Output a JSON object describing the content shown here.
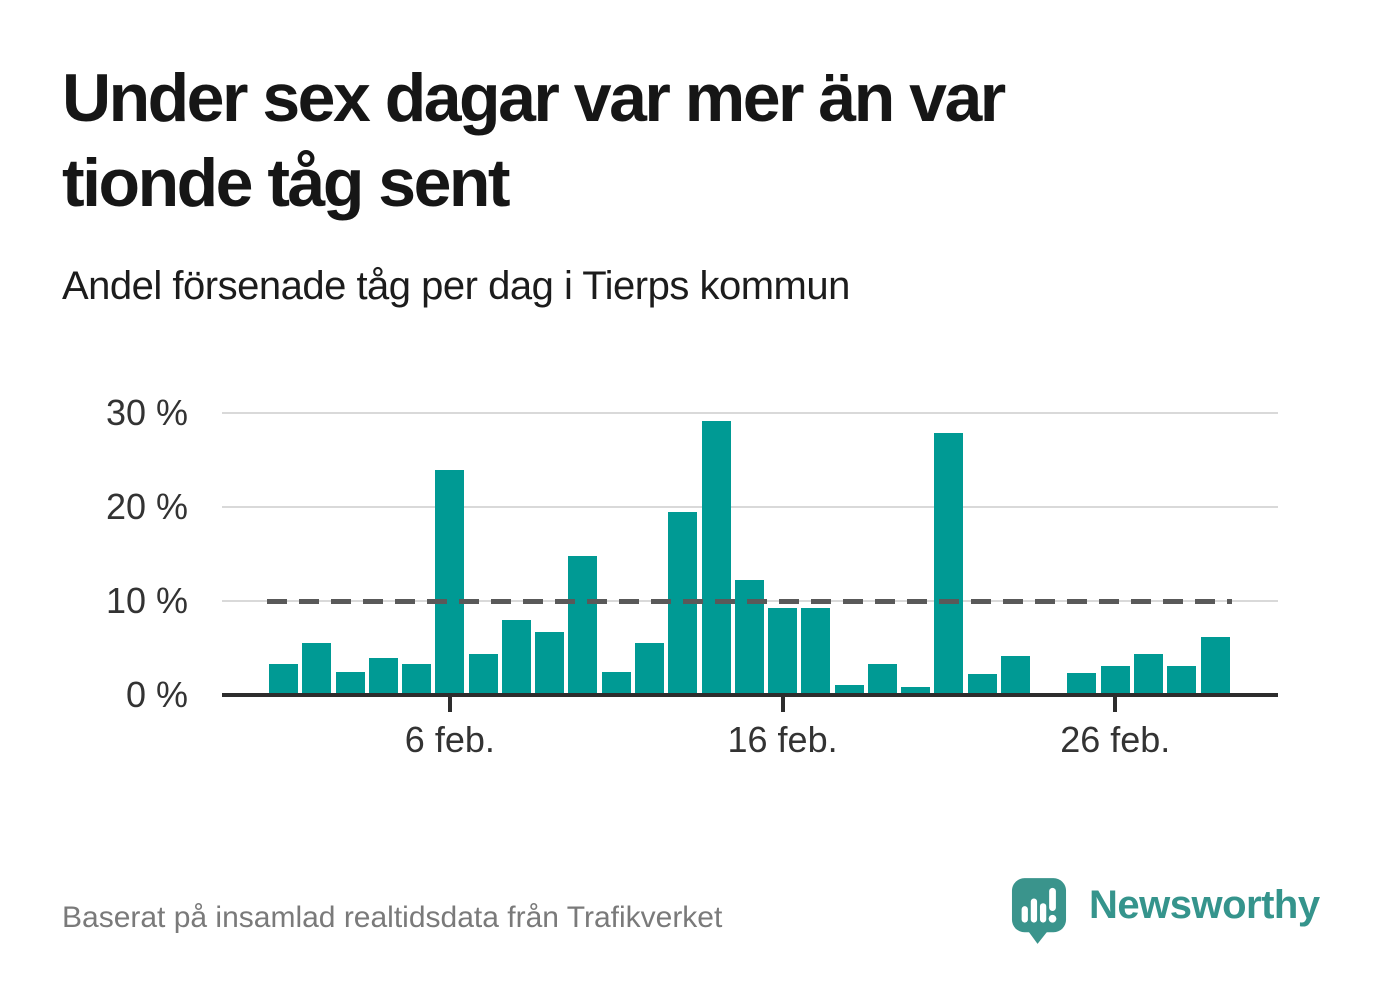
{
  "page": {
    "background": "#ffffff"
  },
  "header": {
    "title": "Under sex dagar var mer än var tionde tåg sent",
    "title_lines": [
      "Under sex dagar var mer än var",
      "tionde tåg sent"
    ],
    "subtitle": "Andel försenade tåg per dag i Tierps kommun"
  },
  "chart_data": {
    "type": "bar",
    "title": "Under sex dagar var mer än var tionde tåg sent",
    "subtitle": "Andel försenade tåg per dag i Tierps kommun",
    "unit": "%",
    "categories": [
      "1 feb.",
      "2 feb.",
      "3 feb.",
      "4 feb.",
      "5 feb.",
      "6 feb.",
      "7 feb.",
      "8 feb.",
      "9 feb.",
      "10 feb.",
      "11 feb.",
      "12 feb.",
      "13 feb.",
      "14 feb.",
      "15 feb.",
      "16 feb.",
      "17 feb.",
      "18 feb.",
      "19 feb.",
      "20 feb.",
      "21 feb.",
      "22 feb.",
      "23 feb.",
      "24 feb.",
      "25 feb.",
      "26 feb.",
      "27 feb.",
      "28 feb.",
      "29 feb."
    ],
    "values": [
      3.3,
      5.5,
      2.4,
      3.9,
      3.3,
      23.9,
      4.4,
      8.0,
      6.7,
      14.8,
      2.5,
      5.5,
      19.5,
      29.2,
      12.2,
      9.3,
      9.3,
      1.1,
      3.3,
      0.9,
      27.9,
      2.2,
      4.2,
      null,
      2.3,
      3.1,
      4.4,
      3.1,
      6.2
    ],
    "missing_categories": [
      "24 feb."
    ],
    "ylim": [
      0,
      30
    ],
    "yticks": [
      {
        "label": "30 %",
        "value": 30
      },
      {
        "label": "20 %",
        "value": 20
      },
      {
        "label": "10 %",
        "value": 10
      },
      {
        "label": "0 %",
        "value": 0
      }
    ],
    "xticks": [
      {
        "label": "6 feb.",
        "index": 5
      },
      {
        "label": "16 feb.",
        "index": 15
      },
      {
        "label": "26 feb.",
        "index": 25
      }
    ],
    "reference_line": {
      "value": 10,
      "style": "dashed",
      "color": "#595959"
    },
    "grid": true,
    "legend": false,
    "bar_color": "#009a94"
  },
  "footer": {
    "source_note": "Baserat på insamlad realtidsdata från Trafikverket",
    "brand_name": "Newsworthy"
  },
  "colors": {
    "bar": "#009a94",
    "brand_teal": "#35948c",
    "logo_bubble": "#3a948c",
    "axis": "#2d2d2d",
    "gridline": "#d9d9d9",
    "reference_dash": "#595959",
    "title_text": "#161616",
    "axis_text": "#333333",
    "source_text": "#7a7a7a"
  }
}
